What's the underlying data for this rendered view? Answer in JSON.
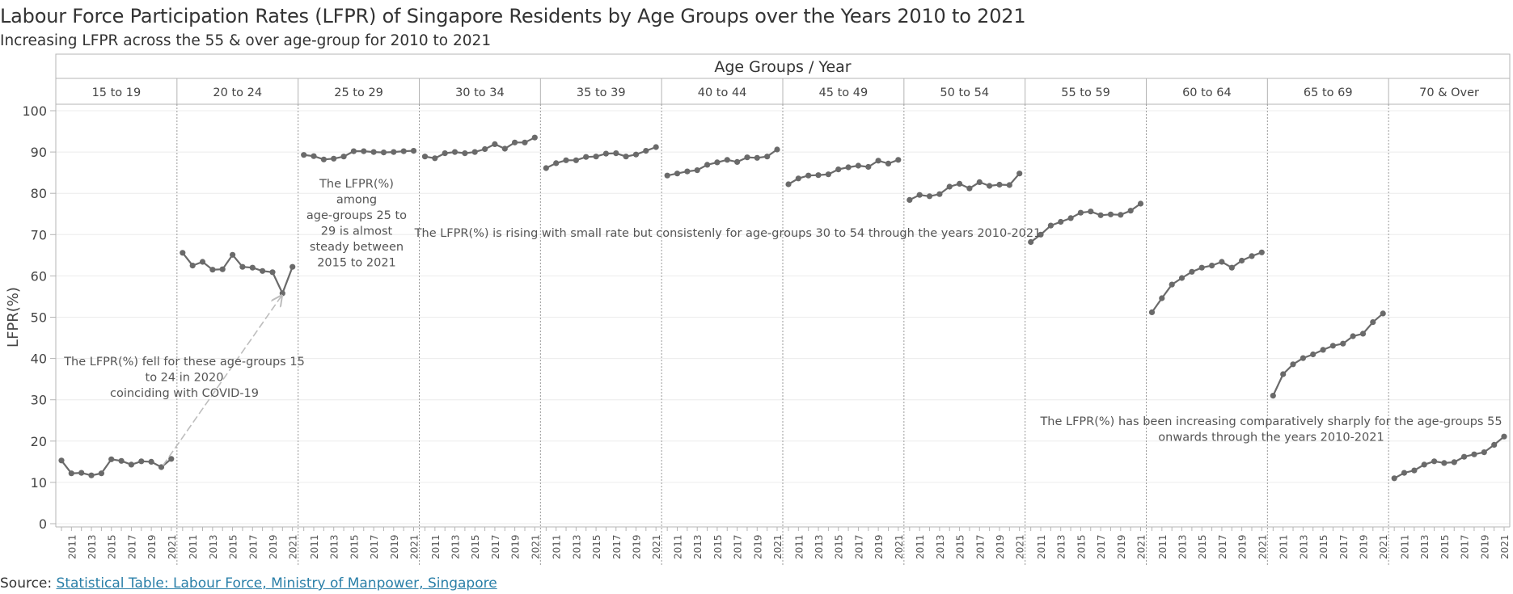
{
  "title": "Labour Force Participation Rates (LFPR) of Singapore Residents by Age Groups over the Years 2010 to 2021",
  "subtitle": "Increasing LFPR across the 55 & over age-group for 2010 to 2021",
  "source": {
    "prefix": "Source: ",
    "link_text": "Statistical Table: Labour Force, Ministry of Manpower, Singapore"
  },
  "colors": {
    "line": "#6a6a6a",
    "grid": "#ececec",
    "border": "#b4b4b4",
    "arrow": "#bdbdbd"
  },
  "chart_data": {
    "type": "line",
    "title": "Labour Force Participation Rates (LFPR) of Singapore Residents by Age Groups over the Years 2010 to 2021",
    "header": "Age Groups  /  Year",
    "ylabel": "LFPR(%)",
    "ylim": [
      0,
      100
    ],
    "yticks": [
      0,
      10,
      20,
      30,
      40,
      50,
      60,
      70,
      80,
      90,
      100
    ],
    "grid": true,
    "x": [
      2010,
      2011,
      2012,
      2013,
      2014,
      2015,
      2016,
      2017,
      2018,
      2019,
      2020,
      2021
    ],
    "xtick_labels": [
      "2011",
      "2013",
      "2015",
      "2017",
      "2019",
      "2021"
    ],
    "series": [
      {
        "name": "15 to 19",
        "values": [
          15.3,
          12.2,
          12.3,
          11.7,
          12.2,
          15.6,
          15.2,
          14.3,
          15.1,
          15.0,
          13.7,
          15.7
        ]
      },
      {
        "name": "20 to 24",
        "values": [
          65.6,
          62.5,
          63.4,
          61.5,
          61.6,
          65.1,
          62.2,
          62.0,
          61.2,
          60.9,
          55.8,
          62.2
        ]
      },
      {
        "name": "25 to 29",
        "values": [
          89.3,
          89.0,
          88.2,
          88.4,
          88.9,
          90.2,
          90.2,
          90.0,
          89.9,
          90.0,
          90.2,
          90.3
        ]
      },
      {
        "name": "30 to 34",
        "values": [
          88.9,
          88.5,
          89.7,
          90.0,
          89.7,
          90.0,
          90.7,
          91.9,
          90.8,
          92.3,
          92.3,
          93.5
        ]
      },
      {
        "name": "35 to 39",
        "values": [
          86.1,
          87.3,
          88.0,
          88.0,
          88.8,
          88.9,
          89.6,
          89.7,
          88.9,
          89.4,
          90.3,
          91.2
        ]
      },
      {
        "name": "40 to 44",
        "values": [
          84.3,
          84.8,
          85.3,
          85.6,
          86.9,
          87.5,
          88.1,
          87.6,
          88.7,
          88.6,
          88.9,
          90.6
        ]
      },
      {
        "name": "45 to 49",
        "values": [
          82.2,
          83.6,
          84.3,
          84.4,
          84.6,
          85.8,
          86.3,
          86.7,
          86.4,
          87.9,
          87.2,
          88.1
        ]
      },
      {
        "name": "50 to 54",
        "values": [
          78.4,
          79.6,
          79.3,
          79.8,
          81.6,
          82.3,
          81.2,
          82.7,
          81.8,
          82.1,
          82.0,
          84.8
        ]
      },
      {
        "name": "55 to 59",
        "values": [
          68.2,
          70.0,
          72.2,
          73.1,
          74.0,
          75.3,
          75.6,
          74.7,
          74.9,
          74.8,
          75.8,
          77.5
        ]
      },
      {
        "name": "60 to 64",
        "values": [
          51.2,
          54.6,
          57.9,
          59.5,
          61.0,
          62.0,
          62.5,
          63.4,
          62.0,
          63.7,
          64.8,
          65.7
        ]
      },
      {
        "name": "65 to 69",
        "values": [
          31.0,
          36.2,
          38.6,
          40.1,
          41.0,
          42.1,
          43.1,
          43.6,
          45.4,
          46.0,
          48.8,
          50.9
        ]
      },
      {
        "name": "70 & Over",
        "values": [
          11.0,
          12.3,
          12.9,
          14.3,
          15.1,
          14.7,
          14.9,
          16.2,
          16.8,
          17.3,
          19.1,
          21.1
        ]
      }
    ],
    "annotations": [
      {
        "text": "The LFPR(%) fell for these age-groups 15 to 24 in 2020 coinciding with COVID-19",
        "lines": [
          "The LFPR(%) fell for these age-groups 15",
          "to 24 in 2020",
          "coinciding with COVID-19"
        ]
      },
      {
        "text": "The LFPR(%) among age-groups 25 to 29 is almost steady between 2015 to 2021",
        "lines": [
          "The LFPR(%)",
          "among",
          "age-groups 25 to",
          "29 is almost",
          "steady between",
          "2015 to 2021"
        ]
      },
      {
        "text": "The LFPR(%) is rising with small rate but consistenly for age-groups 30 to 54 through the years 2010-2021",
        "lines": [
          "The LFPR(%) is rising with small rate but consistenly for age-groups 30 to 54 through the years 2010-2021"
        ]
      },
      {
        "text": "The LFPR(%) has been increasing comparatively sharply for the age-groups 55 onwards through the years 2010-2021",
        "lines": [
          "The LFPR(%) has been increasing comparatively sharply for the age-groups 55",
          "onwards through the years 2010-2021"
        ]
      }
    ]
  }
}
